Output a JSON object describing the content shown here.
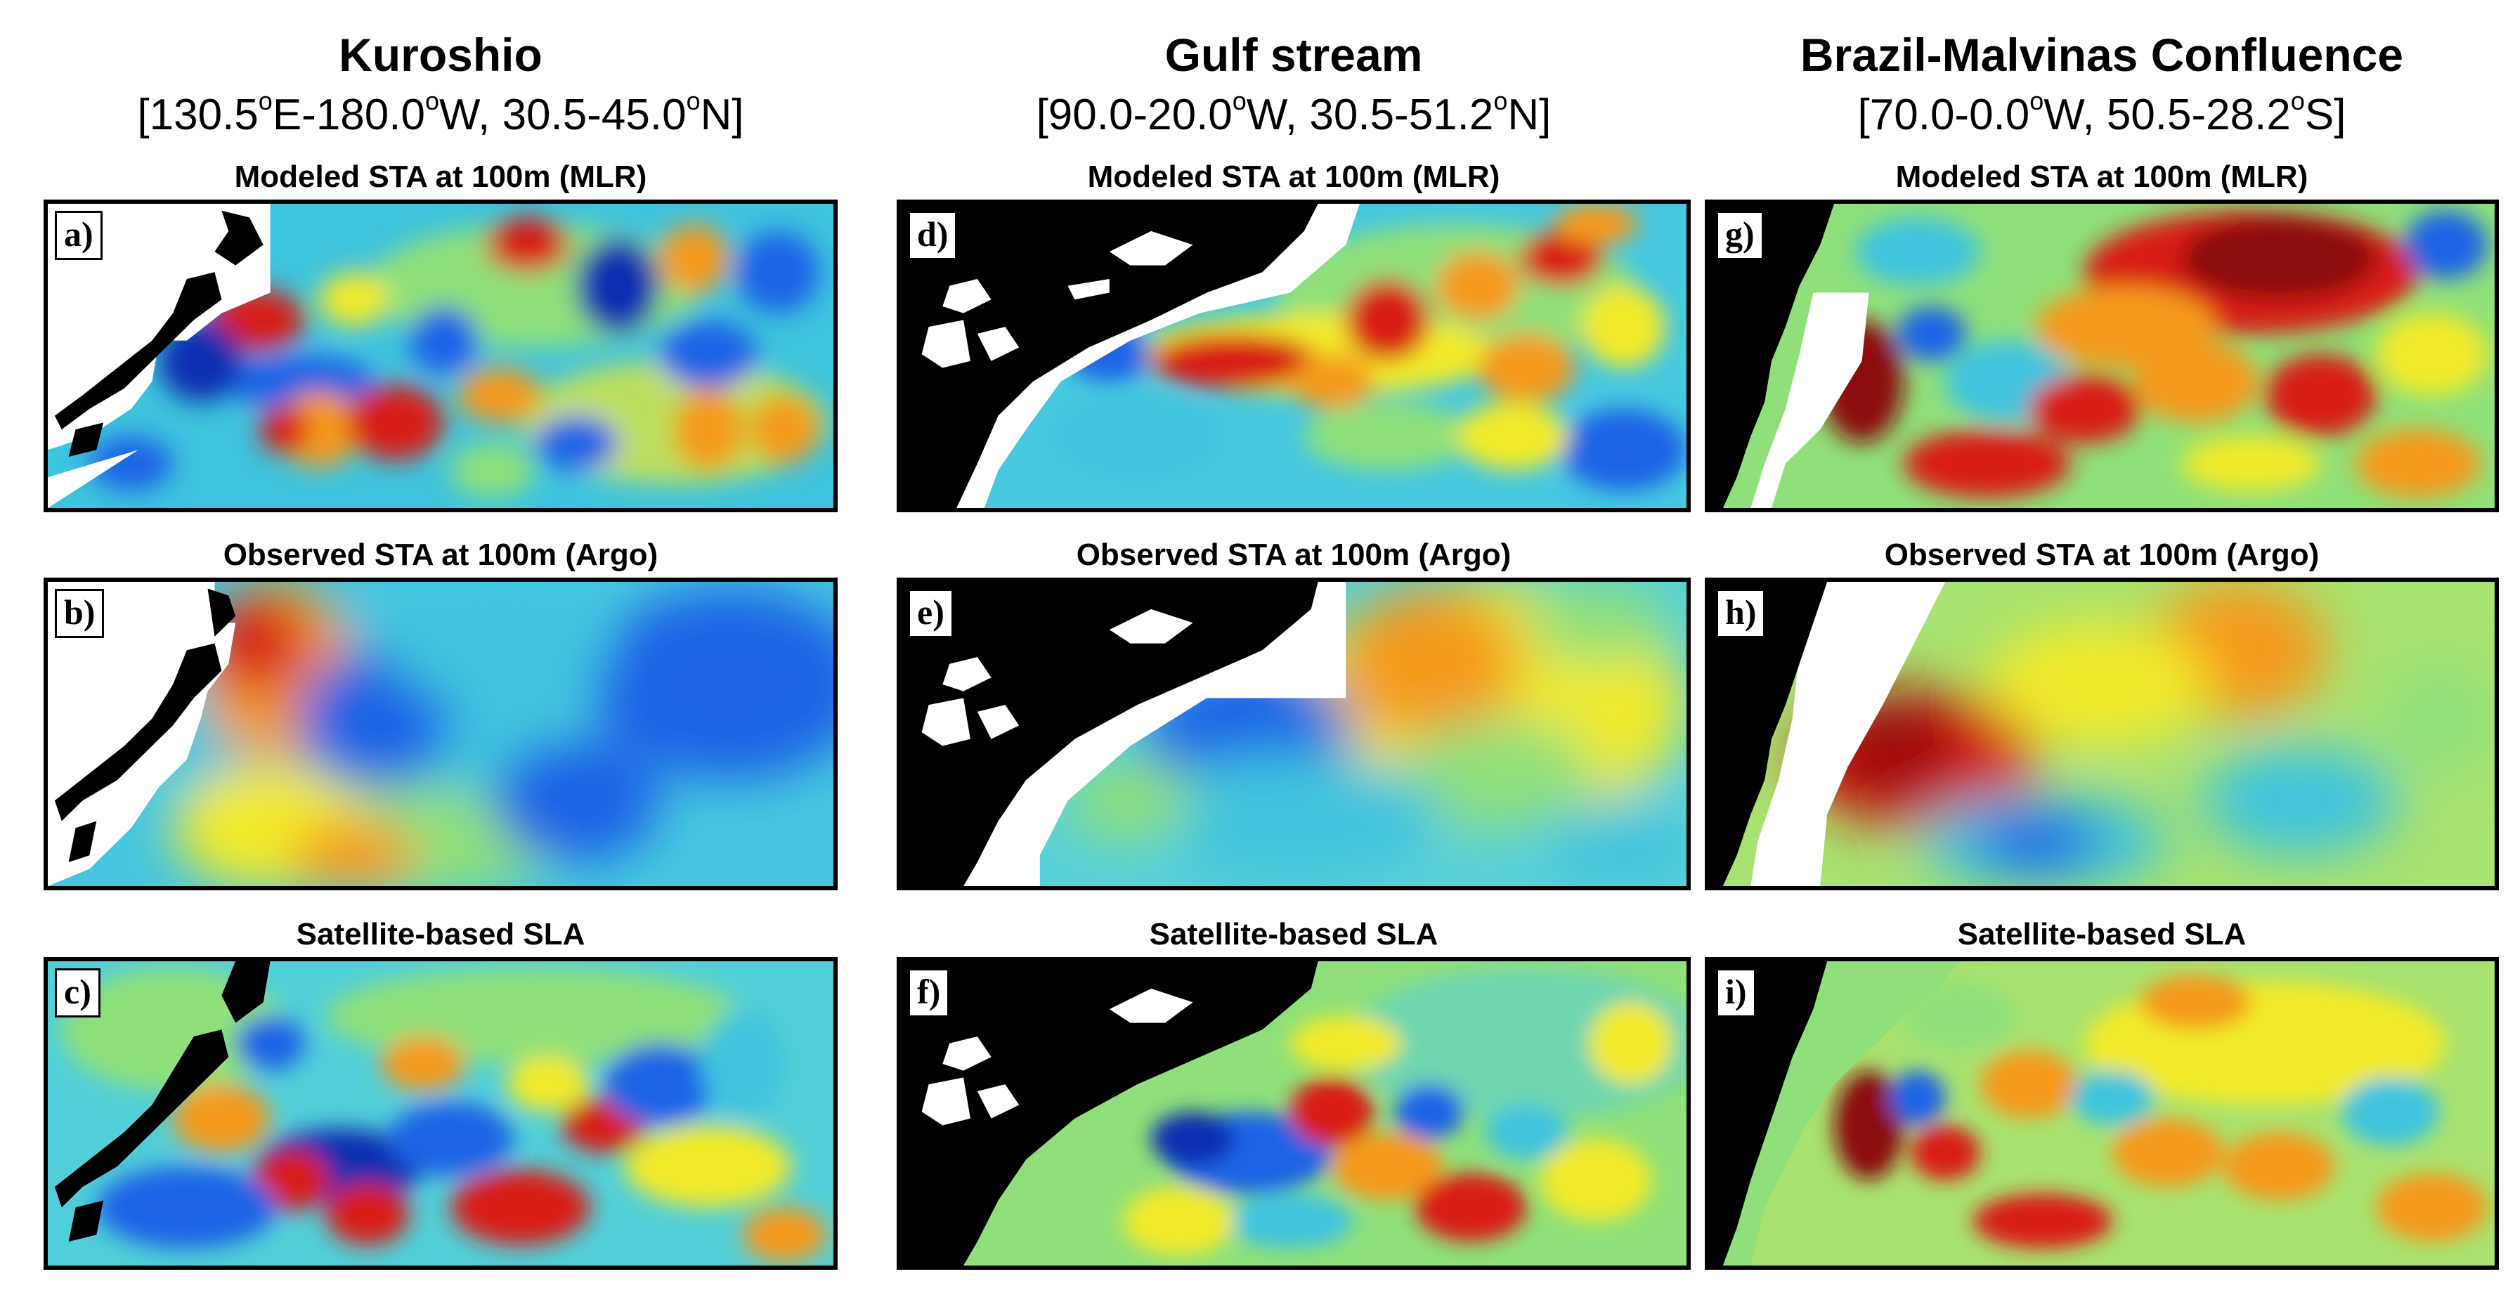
{
  "columns": [
    {
      "title": "Kuroshio",
      "range_parts": [
        "[130.5",
        "o",
        "E-180.0",
        "o",
        "W, 30.5-45.0",
        "o",
        "N]"
      ],
      "panels": [
        {
          "letter": "a)",
          "title": "Modeled STA at 100m (MLR)"
        },
        {
          "letter": "b)",
          "title": "Observed STA at 100m (Argo)"
        },
        {
          "letter": "c)",
          "title": "Satellite-based SLA"
        }
      ]
    },
    {
      "title": "Gulf stream",
      "range_parts": [
        "[90.0-20.0",
        "o",
        "W, 30.5-51.2",
        "o",
        "N]"
      ],
      "panels": [
        {
          "letter": "d)",
          "title": "Modeled STA at 100m (MLR)"
        },
        {
          "letter": "e)",
          "title": "Observed STA at 100m (Argo)"
        },
        {
          "letter": "f)",
          "title": "Satellite-based SLA"
        }
      ]
    },
    {
      "title": "Brazil-Malvinas Confluence",
      "range_parts": [
        "[70.0-0.0",
        "o",
        "W, 50.5-28.2",
        "o",
        "S]"
      ],
      "panels": [
        {
          "letter": "g)",
          "title": "Modeled STA at 100m (MLR)"
        },
        {
          "letter": "h)",
          "title": "Observed STA at 100m (Argo)"
        },
        {
          "letter": "i)",
          "title": "Satellite-based SLA"
        }
      ]
    }
  ],
  "colors": {
    "ocean_base": "#44c8e0",
    "land": "#000000",
    "no_data": "#ffffff",
    "deep_blue": "#0b2fb0",
    "blue": "#1e63e6",
    "cyan": "#2fd2e6",
    "green": "#8fe07a",
    "yellow": "#f2ea2a",
    "orange": "#f59a1c",
    "red": "#d81f12",
    "dark_red": "#8b0a0a"
  }
}
